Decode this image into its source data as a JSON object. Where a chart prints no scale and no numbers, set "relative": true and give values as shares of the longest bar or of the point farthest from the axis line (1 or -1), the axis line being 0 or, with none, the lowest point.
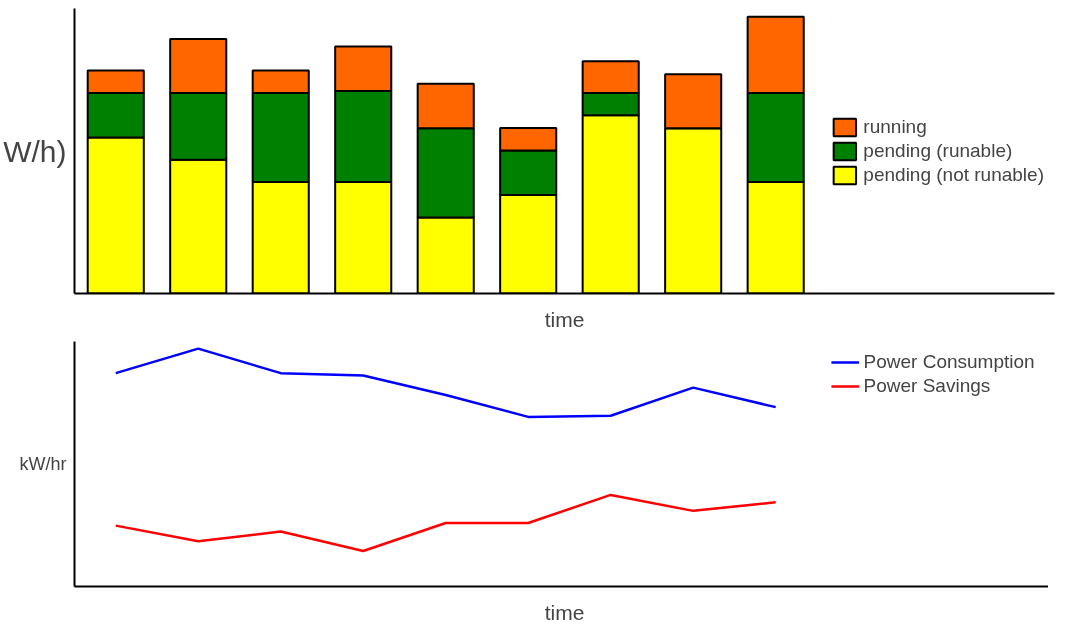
{
  "chart_data": [
    {
      "type": "bar",
      "stacked": true,
      "relative": true,
      "ylabel": "W/h)",
      "xlabel": "time",
      "categories": [
        null,
        null,
        null,
        null,
        null,
        null,
        null,
        null,
        null
      ],
      "legend": "right",
      "grid": false,
      "series": [
        {
          "name": "pending (not runable)",
          "color": "#ffff00",
          "values": [
            0.564,
            0.483,
            0.403,
            0.403,
            0.275,
            0.356,
            0.644,
            0.597,
            0.403
          ]
        },
        {
          "name": "pending (runable)",
          "color": "#008000",
          "values": [
            0.161,
            0.242,
            0.322,
            0.329,
            0.322,
            0.161,
            0.081,
            0,
            0.322
          ]
        },
        {
          "name": "running",
          "color": "#ff6600",
          "values": [
            0.081,
            0.195,
            0.081,
            0.161,
            0.161,
            0.081,
            0.114,
            0.195,
            0.275
          ]
        }
      ]
    },
    {
      "type": "line",
      "relative": true,
      "ylabel": "kW/hr",
      "xlabel": "time",
      "categories": [
        null,
        null,
        null,
        null,
        null,
        null,
        null,
        null,
        null
      ],
      "legend": "top right",
      "grid": false,
      "marker": "none",
      "line_style": "solid",
      "series": [
        {
          "name": "Power Consumption",
          "color": "#0000ff",
          "values": [
            0.897,
            1,
            0.897,
            0.887,
            0.805,
            0.713,
            0.718,
            0.836,
            0.754
          ]
        },
        {
          "name": "Power Savings",
          "color": "#ff0000",
          "values": [
            0.256,
            0.19,
            0.231,
            0.149,
            0.267,
            0.267,
            0.385,
            0.318,
            0.354
          ]
        }
      ]
    }
  ]
}
